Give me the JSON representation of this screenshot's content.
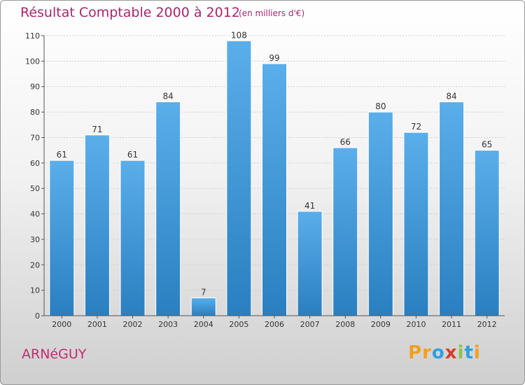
{
  "header": {
    "title": "Résultat Comptable 2000 à 2012",
    "subtitle": "(en milliers d'€)"
  },
  "footer": {
    "commune": "ARNéGUY",
    "brand": "Proxiti",
    "brand_letters": [
      "P",
      "r",
      "o",
      "x",
      "i",
      "t",
      "i"
    ],
    "brand_colors": [
      "#f0a020",
      "#f0a020",
      "#2e9fe0",
      "#d43c2a",
      "#8bc34a",
      "#2e9fe0",
      "#f0a020"
    ]
  },
  "colors": {
    "bar_top": "#5aaeea",
    "bar_bottom": "#2a7fc0",
    "title": "#a8266d",
    "axis": "#555555"
  },
  "chart_data": {
    "type": "bar",
    "title": "Résultat Comptable 2000 à 2012",
    "subtitle": "(en milliers d'€)",
    "xlabel": "",
    "ylabel": "",
    "categories": [
      "2000",
      "2001",
      "2002",
      "2003",
      "2004",
      "2005",
      "2006",
      "2007",
      "2008",
      "2009",
      "2010",
      "2011",
      "2012"
    ],
    "values": [
      61,
      71,
      61,
      84,
      7,
      108,
      99,
      41,
      66,
      80,
      72,
      84,
      65
    ],
    "ylim": [
      0,
      110
    ],
    "yticks": [
      0,
      10,
      20,
      30,
      40,
      50,
      60,
      70,
      80,
      90,
      100,
      110
    ],
    "grid": true
  }
}
